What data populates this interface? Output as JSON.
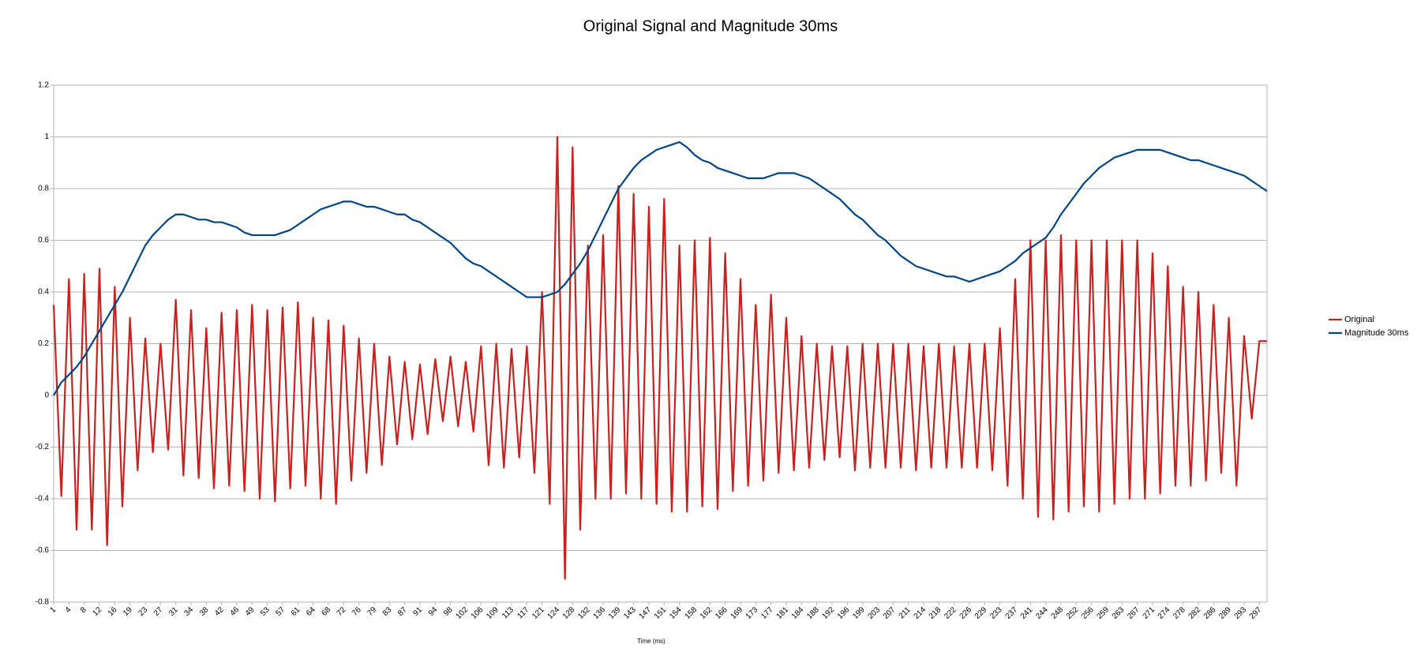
{
  "chart_data": {
    "type": "line",
    "title": "Original Signal and Magnitude 30ms",
    "x_label": "Time (ms)",
    "categories": [
      "1",
      null,
      "4",
      null,
      "8",
      null,
      "12",
      null,
      "16",
      null,
      "19",
      null,
      "23",
      null,
      "27",
      null,
      "31",
      null,
      "34",
      null,
      "38",
      null,
      "42",
      null,
      "46",
      null,
      "49",
      null,
      "53",
      null,
      "57",
      null,
      "61",
      null,
      "64",
      null,
      "68",
      null,
      "72",
      null,
      "76",
      null,
      "79",
      null,
      "83",
      null,
      "87",
      null,
      "91",
      null,
      "94",
      null,
      "98",
      null,
      "102",
      null,
      "106",
      null,
      "109",
      null,
      "113",
      null,
      "117",
      null,
      "121",
      null,
      "124",
      null,
      "128",
      null,
      "132",
      null,
      "136",
      null,
      "139",
      null,
      "143",
      null,
      "147",
      null,
      "151",
      null,
      "154",
      null,
      "158",
      null,
      "162",
      null,
      "166",
      null,
      "169",
      null,
      "173",
      null,
      "177",
      null,
      "181",
      null,
      "184",
      null,
      "188",
      null,
      "192",
      null,
      "196",
      null,
      "199",
      null,
      "203",
      null,
      "207",
      null,
      "211",
      null,
      "214",
      null,
      "218",
      null,
      "222",
      null,
      "226",
      null,
      "229",
      null,
      "233",
      null,
      "237",
      null,
      "241",
      null,
      "244",
      null,
      "248",
      null,
      "252",
      null,
      "256",
      null,
      "259",
      null,
      "263",
      null,
      "267",
      null,
      "271",
      null,
      "274",
      null,
      "278",
      null,
      "282",
      null,
      "286",
      null,
      "289",
      null,
      "293",
      null,
      "297",
      null
    ],
    "series": [
      {
        "name": "Original",
        "color": "#c9211e",
        "values": [
          0.35,
          -0.39,
          0.45,
          -0.52,
          0.47,
          -0.52,
          0.49,
          -0.58,
          0.42,
          -0.43,
          0.3,
          -0.29,
          0.22,
          -0.22,
          0.2,
          -0.21,
          0.37,
          -0.31,
          0.33,
          -0.32,
          0.26,
          -0.36,
          0.32,
          -0.35,
          0.33,
          -0.37,
          0.35,
          -0.4,
          0.33,
          -0.41,
          0.34,
          -0.36,
          0.36,
          -0.35,
          0.3,
          -0.4,
          0.29,
          -0.42,
          0.27,
          -0.33,
          0.22,
          -0.3,
          0.2,
          -0.27,
          0.15,
          -0.19,
          0.13,
          -0.17,
          0.12,
          -0.15,
          0.14,
          -0.1,
          0.15,
          -0.12,
          0.13,
          -0.14,
          0.19,
          -0.27,
          0.2,
          -0.28,
          0.18,
          -0.24,
          0.19,
          -0.3,
          0.4,
          -0.42,
          1.0,
          -0.71,
          0.96,
          -0.52,
          0.58,
          -0.4,
          0.62,
          -0.4,
          0.81,
          -0.38,
          0.78,
          -0.4,
          0.73,
          -0.42,
          0.76,
          -0.45,
          0.58,
          -0.45,
          0.6,
          -0.43,
          0.61,
          -0.44,
          0.55,
          -0.37,
          0.45,
          -0.35,
          0.35,
          -0.33,
          0.39,
          -0.3,
          0.3,
          -0.29,
          0.23,
          -0.28,
          0.2,
          -0.25,
          0.19,
          -0.24,
          0.19,
          -0.29,
          0.2,
          -0.28,
          0.2,
          -0.28,
          0.2,
          -0.28,
          0.2,
          -0.29,
          0.19,
          -0.28,
          0.2,
          -0.28,
          0.19,
          -0.28,
          0.2,
          -0.28,
          0.2,
          -0.29,
          0.26,
          -0.35,
          0.45,
          -0.4,
          0.6,
          -0.47,
          0.6,
          -0.48,
          0.62,
          -0.45,
          0.6,
          -0.43,
          0.6,
          -0.45,
          0.6,
          -0.42,
          0.6,
          -0.4,
          0.6,
          -0.4,
          0.55,
          -0.38,
          0.5,
          -0.35,
          0.42,
          -0.35,
          0.4,
          -0.33,
          0.35,
          -0.3,
          0.3,
          -0.35,
          0.23,
          -0.09,
          0.21,
          0.21
        ]
      },
      {
        "name": "Magnitude 30ms",
        "color": "#004586",
        "values": [
          0.0,
          0.05,
          0.08,
          0.11,
          0.15,
          0.2,
          0.25,
          0.3,
          0.35,
          0.4,
          0.46,
          0.52,
          0.58,
          0.62,
          0.65,
          0.68,
          0.7,
          0.7,
          0.69,
          0.68,
          0.68,
          0.67,
          0.67,
          0.66,
          0.65,
          0.63,
          0.62,
          0.62,
          0.62,
          0.62,
          0.63,
          0.64,
          0.66,
          0.68,
          0.7,
          0.72,
          0.73,
          0.74,
          0.75,
          0.75,
          0.74,
          0.73,
          0.73,
          0.72,
          0.71,
          0.7,
          0.7,
          0.68,
          0.67,
          0.65,
          0.63,
          0.61,
          0.59,
          0.56,
          0.53,
          0.51,
          0.5,
          0.48,
          0.46,
          0.44,
          0.42,
          0.4,
          0.38,
          0.38,
          0.38,
          0.39,
          0.4,
          0.43,
          0.47,
          0.51,
          0.56,
          0.62,
          0.68,
          0.74,
          0.8,
          0.84,
          0.88,
          0.91,
          0.93,
          0.95,
          0.96,
          0.97,
          0.98,
          0.96,
          0.93,
          0.91,
          0.9,
          0.88,
          0.87,
          0.86,
          0.85,
          0.84,
          0.84,
          0.84,
          0.85,
          0.86,
          0.86,
          0.86,
          0.85,
          0.84,
          0.82,
          0.8,
          0.78,
          0.76,
          0.73,
          0.7,
          0.68,
          0.65,
          0.62,
          0.6,
          0.57,
          0.54,
          0.52,
          0.5,
          0.49,
          0.48,
          0.47,
          0.46,
          0.46,
          0.45,
          0.44,
          0.45,
          0.46,
          0.47,
          0.48,
          0.5,
          0.52,
          0.55,
          0.57,
          0.59,
          0.61,
          0.65,
          0.7,
          0.74,
          0.78,
          0.82,
          0.85,
          0.88,
          0.9,
          0.92,
          0.93,
          0.94,
          0.95,
          0.95,
          0.95,
          0.95,
          0.94,
          0.93,
          0.92,
          0.91,
          0.91,
          0.9,
          0.89,
          0.88,
          0.87,
          0.86,
          0.85,
          0.83,
          0.81,
          0.79
        ]
      }
    ],
    "ylim": [
      -0.8,
      1.2
    ],
    "yticks": [
      -0.8,
      -0.6,
      -0.4,
      -0.2,
      0,
      0.2,
      0.4,
      0.6,
      0.8,
      1,
      1.2
    ],
    "grid": true,
    "legend": "right"
  }
}
